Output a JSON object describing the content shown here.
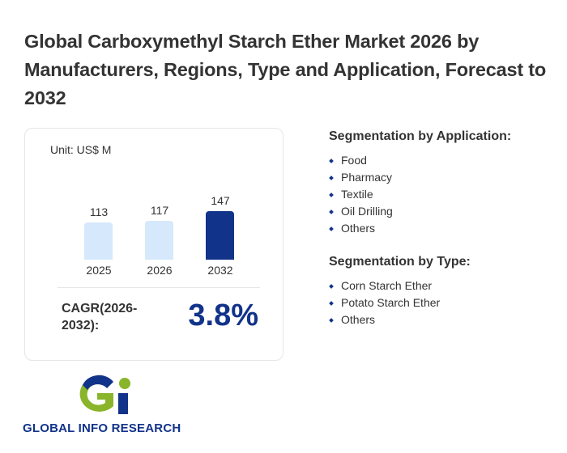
{
  "title": "Global Carboxymethyl Starch Ether Market 2026 by Manufacturers, Regions, Type and Application, Forecast to 2032",
  "chart_data": {
    "type": "bar",
    "unit": "Unit: US$ M",
    "categories": [
      "2025",
      "2026",
      "2032"
    ],
    "values": [
      113,
      117,
      147
    ],
    "colors": [
      "#d6e8fb",
      "#d6e8fb",
      "#12338a"
    ],
    "ylim": [
      0,
      147
    ]
  },
  "cagr": {
    "label": "CAGR(2026-2032):",
    "value": "3.8%"
  },
  "application": {
    "heading": "Segmentation by Application:",
    "items": [
      "Food",
      "Pharmacy",
      "Textile",
      "Oil Drilling",
      "Others"
    ]
  },
  "type": {
    "heading": "Segmentation by Type:",
    "items": [
      "Corn Starch Ether",
      "Potato Starch Ether",
      "Others"
    ]
  },
  "logo": {
    "text": "GLOBAL INFO RESEARCH"
  },
  "watermark": "GLOBAL INFO RESEARCH"
}
